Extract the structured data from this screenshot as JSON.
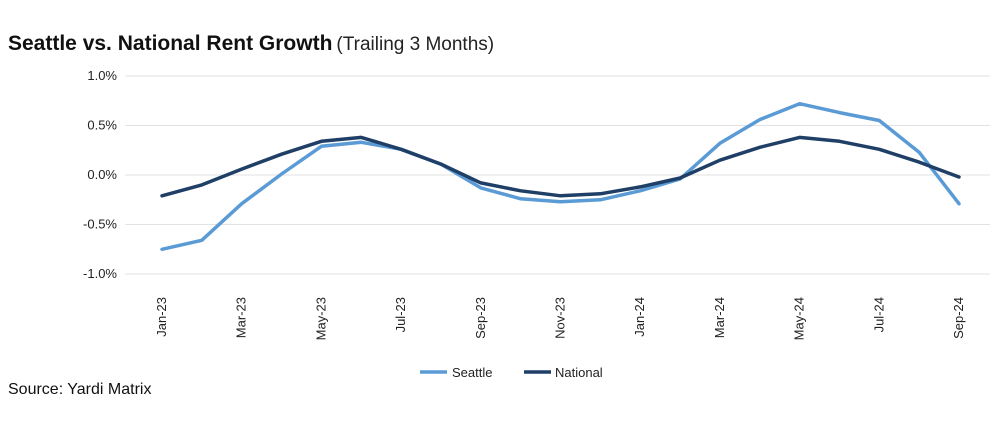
{
  "chart_data": {
    "type": "line",
    "title": "Seattle vs. National Rent Growth",
    "subtitle": "(Trailing 3 Months)",
    "x": [
      "Jan-23",
      "Feb-23",
      "Mar-23",
      "Apr-23",
      "May-23",
      "Jun-23",
      "Jul-23",
      "Aug-23",
      "Sep-23",
      "Oct-23",
      "Nov-23",
      "Dec-23",
      "Jan-24",
      "Feb-24",
      "Mar-24",
      "Apr-24",
      "May-24",
      "Jun-24",
      "Jul-24",
      "Aug-24",
      "Sep-24"
    ],
    "x_tick_labels": [
      "Jan-23",
      "Mar-23",
      "May-23",
      "Jul-23",
      "Sep-23",
      "Nov-23",
      "Jan-24",
      "Mar-24",
      "May-24",
      "Jul-24",
      "Sep-24"
    ],
    "series": [
      {
        "name": "Seattle",
        "color": "#5b9bd5",
        "values": [
          -0.75,
          -0.66,
          -0.29,
          0.01,
          0.29,
          0.33,
          0.26,
          0.11,
          -0.13,
          -0.24,
          -0.27,
          -0.25,
          -0.16,
          -0.04,
          0.32,
          0.56,
          0.72,
          0.63,
          0.55,
          0.23,
          -0.29
        ]
      },
      {
        "name": "National",
        "color": "#1f3f66",
        "values": [
          -0.21,
          -0.1,
          0.06,
          0.21,
          0.34,
          0.38,
          0.26,
          0.11,
          -0.08,
          -0.16,
          -0.21,
          -0.19,
          -0.12,
          -0.03,
          0.15,
          0.28,
          0.38,
          0.34,
          0.26,
          0.13,
          -0.02
        ]
      }
    ],
    "ylim": [
      -1.0,
      1.0
    ],
    "y_ticks": [
      {
        "value": 1.0,
        "label": "1.0%"
      },
      {
        "value": 0.5,
        "label": "0.5%"
      },
      {
        "value": 0.0,
        "label": "0.0%"
      },
      {
        "value": -0.5,
        "label": "-0.5%"
      },
      {
        "value": -1.0,
        "label": "-1.0%"
      }
    ],
    "grid": true,
    "legend": "bottom-center"
  },
  "footer": {
    "source": "Source: Yardi Matrix"
  }
}
